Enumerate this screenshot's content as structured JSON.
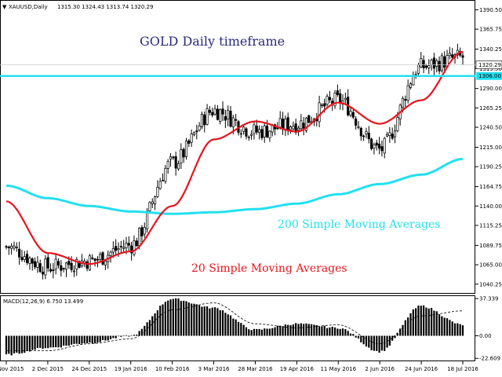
{
  "header": {
    "symbol_line": "XAUUSD,Daily",
    "ohlc": "1315.30 1324.43 1313.74 1320.29"
  },
  "annotations": {
    "title": "GOLD Daily timeframe",
    "sma200": "200 Simple Moving Averages",
    "sma20": "20 Simple Moving Averages"
  },
  "colors": {
    "background": "#ffffff",
    "candle": "#000000",
    "sma20": "#e8141e",
    "sma200": "#22e0f0",
    "title_text": "#2a2a7a",
    "level_line": "#22e0f0",
    "macd_signal": "#000000"
  },
  "price_axis": {
    "labels": [
      "1390.50",
      "1365.75",
      "1340.25",
      "1315.50",
      "1290.00",
      "1265.25",
      "1240.50",
      "1215.00",
      "1190.25",
      "1164.75",
      "1140.00",
      "1115.25",
      "1089.75",
      "1065.00",
      "1040.25"
    ],
    "range": [
      1033,
      1398
    ],
    "current_price": "1320.29",
    "level_price": "1306.00"
  },
  "macd": {
    "label": "MACD(12,26,9) 6.750 13.499",
    "axis_labels": [
      "37.339",
      "0.00",
      "-22.609"
    ],
    "range": [
      -24,
      39
    ]
  },
  "time_axis": {
    "labels": [
      "10 Nov 2015",
      "2 Dec 2015",
      "24 Dec 2015",
      "19 Jan 2016",
      "10 Feb 2016",
      "3 Mar 2016",
      "28 Mar 2016",
      "19 Apr 2016",
      "11 May 2016",
      "2 Jun 2016",
      "24 Jun 2016",
      "18 Jul 2016"
    ]
  },
  "chart_data": {
    "type": "candlestick",
    "symbol": "XAUUSD",
    "timeframe": "Daily",
    "last_ohlc": {
      "open": 1315.3,
      "high": 1324.43,
      "low": 1313.74,
      "close": 1320.29
    },
    "horizontal_level": 1306.0,
    "close_anchors": [
      {
        "date": "10 Nov 2015",
        "close": 1088
      },
      {
        "date": "2 Dec 2015",
        "close": 1062
      },
      {
        "date": "24 Dec 2015",
        "close": 1070
      },
      {
        "date": "19 Jan 2016",
        "close": 1090
      },
      {
        "date": "10 Feb 2016",
        "close": 1195
      },
      {
        "date": "3 Mar 2016",
        "close": 1262
      },
      {
        "date": "28 Mar 2016",
        "close": 1235
      },
      {
        "date": "19 Apr 2016",
        "close": 1245
      },
      {
        "date": "11 May 2016",
        "close": 1275
      },
      {
        "date": "2 Jun 2016",
        "close": 1212
      },
      {
        "date": "24 Jun 2016",
        "close": 1318
      },
      {
        "date": "18 Jul 2016",
        "close": 1330
      }
    ],
    "sma20_anchors": [
      {
        "date": "10 Nov 2015",
        "value": 1146
      },
      {
        "date": "2 Dec 2015",
        "value": 1080
      },
      {
        "date": "24 Dec 2015",
        "value": 1066
      },
      {
        "date": "19 Jan 2016",
        "value": 1082
      },
      {
        "date": "10 Feb 2016",
        "value": 1140
      },
      {
        "date": "3 Mar 2016",
        "value": 1225
      },
      {
        "date": "28 Mar 2016",
        "value": 1248
      },
      {
        "date": "19 Apr 2016",
        "value": 1235
      },
      {
        "date": "11 May 2016",
        "value": 1272
      },
      {
        "date": "2 Jun 2016",
        "value": 1245
      },
      {
        "date": "24 Jun 2016",
        "value": 1275
      },
      {
        "date": "18 Jul 2016",
        "value": 1337
      }
    ],
    "sma200_anchors": [
      {
        "date": "10 Nov 2015",
        "value": 1166
      },
      {
        "date": "2 Dec 2015",
        "value": 1150
      },
      {
        "date": "24 Dec 2015",
        "value": 1140
      },
      {
        "date": "19 Jan 2016",
        "value": 1133
      },
      {
        "date": "10 Feb 2016",
        "value": 1130
      },
      {
        "date": "3 Mar 2016",
        "value": 1132
      },
      {
        "date": "28 Mar 2016",
        "value": 1136
      },
      {
        "date": "19 Apr 2016",
        "value": 1143
      },
      {
        "date": "11 May 2016",
        "value": 1155
      },
      {
        "date": "2 Jun 2016",
        "value": 1168
      },
      {
        "date": "24 Jun 2016",
        "value": 1180
      },
      {
        "date": "18 Jul 2016",
        "value": 1200
      }
    ],
    "macd_anchors": [
      {
        "date": "10 Nov 2015",
        "value": -19
      },
      {
        "date": "2 Dec 2015",
        "value": -12
      },
      {
        "date": "24 Dec 2015",
        "value": -7
      },
      {
        "date": "19 Jan 2016",
        "value": 0
      },
      {
        "date": "10 Feb 2016",
        "value": 37
      },
      {
        "date": "3 Mar 2016",
        "value": 28
      },
      {
        "date": "28 Mar 2016",
        "value": 6
      },
      {
        "date": "19 Apr 2016",
        "value": 12
      },
      {
        "date": "11 May 2016",
        "value": 8
      },
      {
        "date": "2 Jun 2016",
        "value": -16
      },
      {
        "date": "24 Jun 2016",
        "value": 30
      },
      {
        "date": "18 Jul 2016",
        "value": 11
      }
    ],
    "macd_signal_anchors": [
      {
        "date": "10 Nov 2015",
        "value": -15
      },
      {
        "date": "2 Dec 2015",
        "value": -15
      },
      {
        "date": "24 Dec 2015",
        "value": -8
      },
      {
        "date": "19 Jan 2016",
        "value": -3
      },
      {
        "date": "10 Feb 2016",
        "value": 26
      },
      {
        "date": "3 Mar 2016",
        "value": 33
      },
      {
        "date": "28 Mar 2016",
        "value": 12
      },
      {
        "date": "19 Apr 2016",
        "value": 8
      },
      {
        "date": "11 May 2016",
        "value": 11
      },
      {
        "date": "2 Jun 2016",
        "value": -8
      },
      {
        "date": "24 Jun 2016",
        "value": 20
      },
      {
        "date": "18 Jul 2016",
        "value": 25
      }
    ]
  }
}
